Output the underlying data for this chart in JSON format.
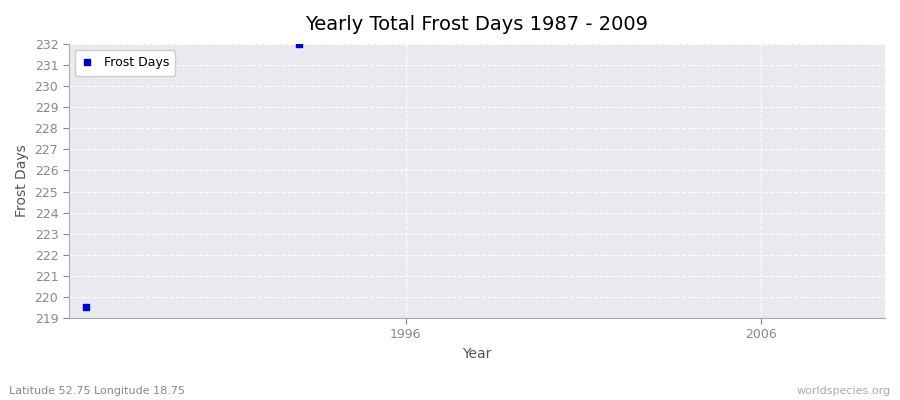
{
  "title": "Yearly Total Frost Days 1987 - 2009",
  "xlabel": "Year",
  "ylabel": "Frost Days",
  "subtitle": "Latitude 52.75 Longitude 18.75",
  "watermark": "worldspecies.org",
  "years": [
    1987,
    1988,
    1989,
    1990,
    1991,
    1992,
    1993,
    1994,
    1995,
    1996,
    1997,
    1998,
    1999,
    2000,
    2001,
    2002,
    2003,
    2004,
    2005,
    2006,
    2007,
    2008,
    2009
  ],
  "values": [
    219.5,
    null,
    null,
    null,
    null,
    null,
    232.0,
    null,
    null,
    null,
    null,
    null,
    null,
    null,
    null,
    null,
    null,
    null,
    null,
    null,
    null,
    null,
    null
  ],
  "ylim": [
    219,
    232
  ],
  "yticks": [
    219,
    220,
    221,
    222,
    223,
    224,
    225,
    226,
    227,
    228,
    229,
    230,
    231,
    232
  ],
  "xticks_labels": [
    "1996",
    "2006"
  ],
  "xticks_values": [
    1996,
    2006
  ],
  "marker_color": "#0000cc",
  "marker": "s",
  "marker_size": 4,
  "legend_label": "Frost Days",
  "fig_bg_color": "#ffffff",
  "plot_bg_color": "#e8eaf0",
  "grid_color": "#ffffff",
  "grid_style": "--",
  "spine_color": "#aaaaaa",
  "title_fontsize": 14,
  "axis_label_fontsize": 10,
  "tick_fontsize": 9,
  "tick_color": "#888888"
}
